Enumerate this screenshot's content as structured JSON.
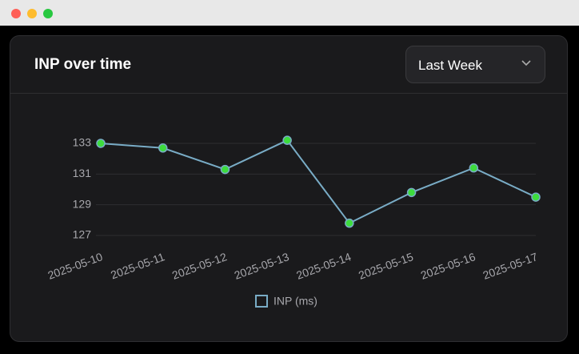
{
  "dropdown": {
    "label": "Last Week"
  },
  "chart_data": {
    "type": "line",
    "title": "INP over time",
    "x": [
      "2025-05-10",
      "2025-05-11",
      "2025-05-12",
      "2025-05-13",
      "2025-05-14",
      "2025-05-15",
      "2025-05-16",
      "2025-05-17"
    ],
    "series": [
      {
        "name": "INP (ms)",
        "color": "#79acc6",
        "marker_color": "#3ddc3d",
        "values": [
          133.0,
          132.7,
          131.3,
          133.2,
          127.8,
          129.8,
          131.4,
          129.5
        ]
      }
    ],
    "ylim": [
      127,
      133
    ],
    "yticks": [
      127,
      129,
      131,
      133
    ],
    "grid": true,
    "legend": "bottom"
  }
}
